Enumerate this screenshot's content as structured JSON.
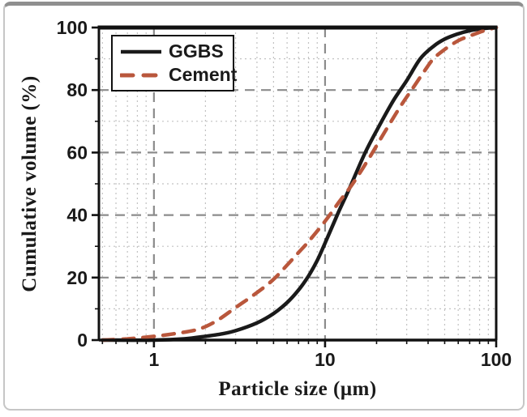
{
  "figure": {
    "background": "#ffffff",
    "frame_color": "#c6c6c6",
    "frame_top_color": "#8f8f8f"
  },
  "chart_data": {
    "type": "line",
    "title": "",
    "xlabel": "Particle size (μm)",
    "ylabel": "Cumulative volume (%)",
    "x_scale": "log",
    "xlim": [
      0.477,
      100
    ],
    "ylim": [
      0,
      100
    ],
    "grid": {
      "major_style": "dashed",
      "minor_style": "dotted",
      "major_color": "#8c8c8c",
      "minor_color": "#c2c2c2"
    },
    "x_major_ticks": [
      {
        "value": 1,
        "label": "1"
      },
      {
        "value": 10,
        "label": "10"
      },
      {
        "value": 100,
        "label": "100"
      }
    ],
    "x_minor_ticks": [
      0.5,
      0.6,
      0.7,
      0.8,
      0.9,
      2,
      3,
      4,
      5,
      6,
      7,
      8,
      9,
      20,
      30,
      40,
      50,
      60,
      70,
      80,
      90
    ],
    "y_major_ticks": [
      {
        "value": 0,
        "label": "0"
      },
      {
        "value": 20,
        "label": "20"
      },
      {
        "value": 40,
        "label": "40"
      },
      {
        "value": 60,
        "label": "60"
      },
      {
        "value": 80,
        "label": "80"
      },
      {
        "value": 100,
        "label": "100"
      }
    ],
    "y_minor_ticks": [
      10,
      30,
      50,
      70,
      90
    ],
    "legend": {
      "position": "top-left",
      "entries": [
        {
          "label": "GGBS",
          "color": "#1a1a1a",
          "style": "solid"
        },
        {
          "label": "Cement",
          "color": "#b9573c",
          "style": "dashed"
        }
      ]
    },
    "series": [
      {
        "name": "GGBS",
        "color": "#1a1a1a",
        "style": "solid",
        "points": [
          [
            0.5,
            0
          ],
          [
            1,
            0
          ],
          [
            1.5,
            0.4
          ],
          [
            2,
            1.2
          ],
          [
            2.5,
            2
          ],
          [
            3,
            3
          ],
          [
            4,
            5.5
          ],
          [
            5,
            8.5
          ],
          [
            6,
            12
          ],
          [
            7,
            16
          ],
          [
            8,
            20.5
          ],
          [
            9,
            25.5
          ],
          [
            10,
            31
          ],
          [
            12,
            41
          ],
          [
            14,
            49
          ],
          [
            17,
            59.5
          ],
          [
            20,
            67
          ],
          [
            25,
            76.5
          ],
          [
            30,
            83
          ],
          [
            36,
            90
          ],
          [
            43,
            94
          ],
          [
            50,
            96.3
          ],
          [
            60,
            98
          ],
          [
            70,
            99
          ],
          [
            85,
            99.7
          ],
          [
            100,
            100
          ]
        ]
      },
      {
        "name": "Cement",
        "color": "#b9573c",
        "style": "dashed",
        "points": [
          [
            0.5,
            0
          ],
          [
            0.7,
            0.4
          ],
          [
            1,
            1.2
          ],
          [
            1.3,
            2
          ],
          [
            1.8,
            3.4
          ],
          [
            2.3,
            6
          ],
          [
            3,
            10.4
          ],
          [
            3.8,
            14.3
          ],
          [
            4.9,
            19
          ],
          [
            6,
            24
          ],
          [
            7,
            28
          ],
          [
            8,
            31.5
          ],
          [
            10,
            38
          ],
          [
            12,
            44
          ],
          [
            14.5,
            50
          ],
          [
            18,
            58
          ],
          [
            22,
            66
          ],
          [
            27,
            74
          ],
          [
            32,
            80
          ],
          [
            38,
            86
          ],
          [
            43,
            90
          ],
          [
            50,
            93
          ],
          [
            60,
            95.8
          ],
          [
            70,
            97.3
          ],
          [
            85,
            99
          ],
          [
            100,
            100
          ]
        ]
      }
    ]
  }
}
